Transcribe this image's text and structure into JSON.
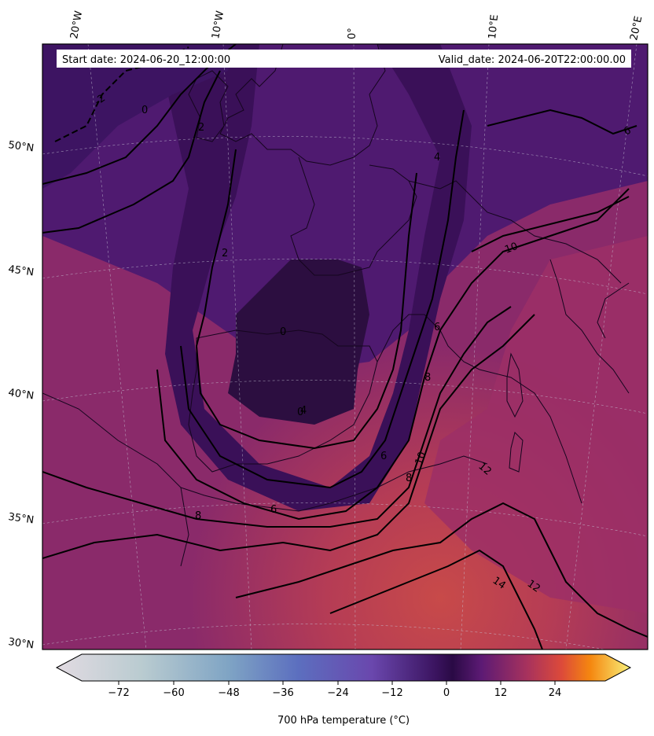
{
  "header": {
    "start_date": "Start date: 2024-06-20_12:00:00",
    "valid_date": "Valid_date: 2024-06-20T22:00:00.00"
  },
  "longitude_labels": [
    "20°W",
    "10°W",
    "0°",
    "10°E",
    "20°E"
  ],
  "latitude_labels": [
    "50°N",
    "45°N",
    "40°N",
    "35°N",
    "30°N"
  ],
  "contour_labels": [
    "-2",
    "0",
    "2",
    "0",
    "0",
    "2",
    "4",
    "6",
    "6",
    "8",
    "10",
    "8",
    "6",
    "10",
    "12",
    "14",
    "12",
    "8",
    "6",
    "4",
    "10"
  ],
  "colorbar": {
    "label": "700 hPa temperature (°C)",
    "ticks": [
      "−72",
      "−60",
      "−48",
      "−36",
      "−24",
      "−12",
      "0",
      "12",
      "24"
    ],
    "min": -80,
    "max": 30,
    "colormap": "inferno-like with blue-grey cold end"
  }
}
